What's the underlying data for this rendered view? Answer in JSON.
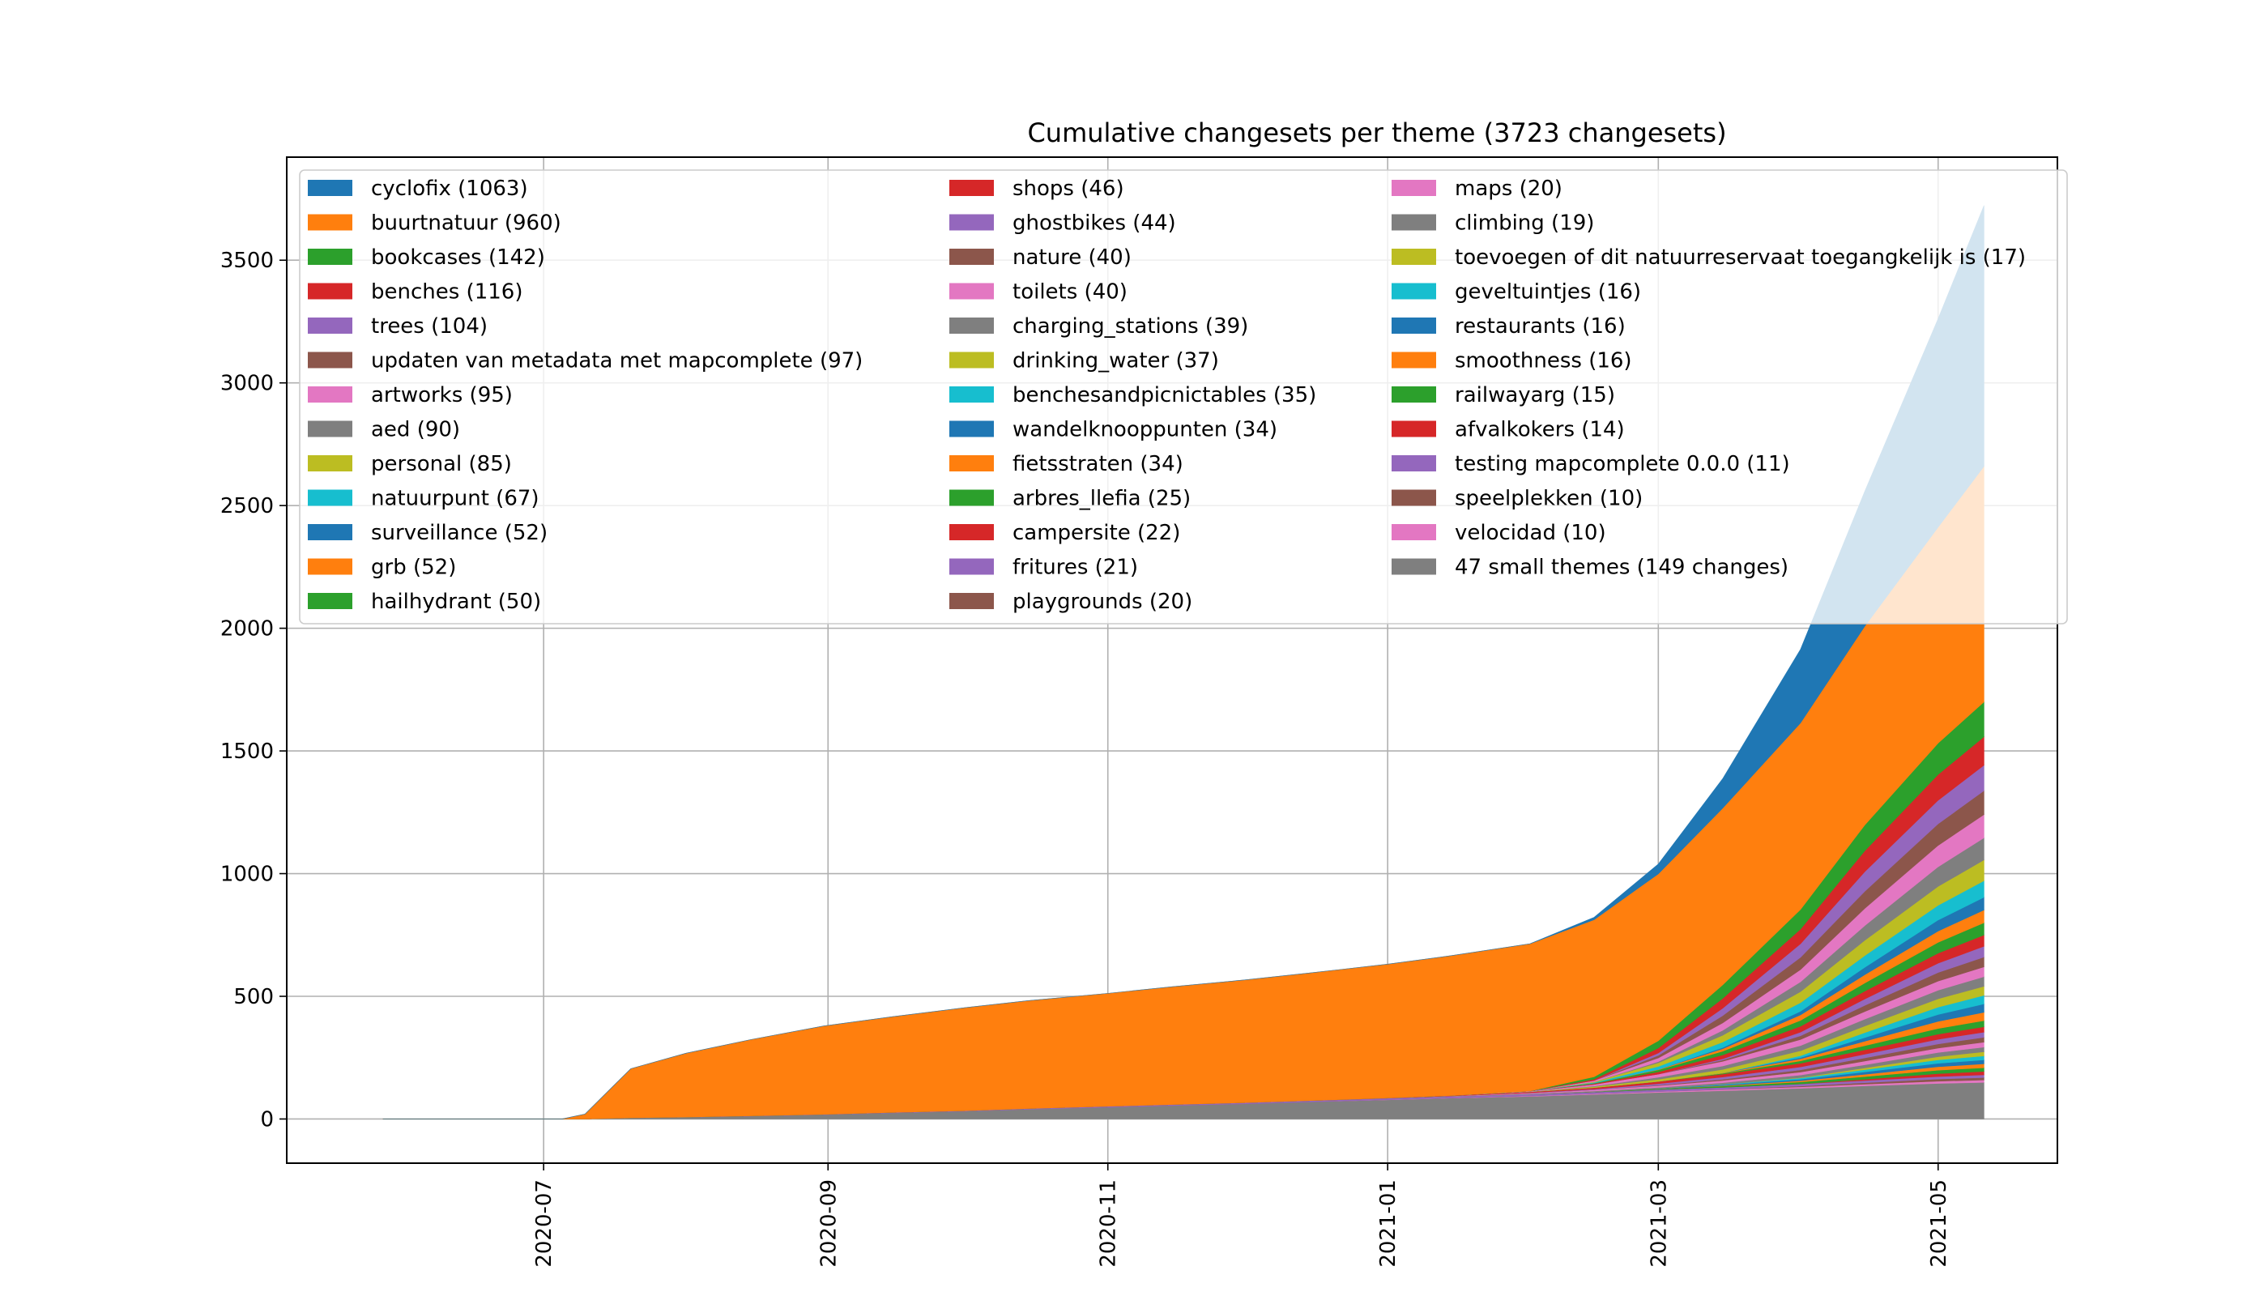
{
  "chart_data": {
    "type": "area",
    "stacked": true,
    "cumulative": true,
    "title": "Cumulative changesets per theme (3723 changesets)",
    "xlabel": "",
    "ylabel": "",
    "xlim": [
      "2020-05-06",
      "2021-05-27"
    ],
    "ylim": [
      -180,
      3920
    ],
    "grid": true,
    "legend_placement": "top (3 columns)",
    "x_ticks": [
      "2020-07",
      "2020-09",
      "2020-11",
      "2021-01",
      "2021-03",
      "2021-05"
    ],
    "x_tick_dates": [
      "2020-07-01",
      "2020-09-01",
      "2020-11-01",
      "2021-01-01",
      "2021-03-01",
      "2021-05-01"
    ],
    "y_ticks": [
      0,
      500,
      1000,
      1500,
      2000,
      2500,
      3000,
      3500
    ],
    "x": [
      "2020-05-27",
      "2020-06-10",
      "2020-06-25",
      "2020-07-05",
      "2020-07-10",
      "2020-07-20",
      "2020-08-01",
      "2020-08-15",
      "2020-08-31",
      "2020-09-15",
      "2020-10-01",
      "2020-10-15",
      "2020-11-01",
      "2020-11-15",
      "2020-12-01",
      "2020-12-15",
      "2021-01-01",
      "2021-01-15",
      "2021-02-01",
      "2021-02-15",
      "2021-03-01",
      "2021-03-15",
      "2021-04-01",
      "2021-04-15",
      "2021-05-01",
      "2021-05-11"
    ],
    "series": [
      {
        "name": "47 small themes (149 changes)",
        "color": "#7f7f7f",
        "values": [
          0,
          0,
          0,
          0,
          0,
          5,
          8,
          12,
          18,
          25,
          32,
          40,
          48,
          55,
          62,
          70,
          78,
          85,
          92,
          100,
          108,
          115,
          125,
          135,
          145,
          149
        ]
      },
      {
        "name": "velocidad (10)",
        "color": "#e377c2",
        "values": [
          0,
          0,
          0,
          0,
          0,
          0,
          0,
          0,
          0,
          0,
          0,
          0,
          0,
          0,
          0,
          0,
          1,
          1,
          2,
          3,
          4,
          5,
          6,
          7,
          9,
          10
        ]
      },
      {
        "name": "speelplekken (10)",
        "color": "#8c564b",
        "values": [
          0,
          0,
          0,
          0,
          0,
          0,
          0,
          0,
          0,
          0,
          0,
          0,
          0,
          0,
          0,
          0,
          0,
          0,
          0,
          0,
          0,
          1,
          3,
          6,
          9,
          10
        ]
      },
      {
        "name": "testing mapcomplete 0.0.0 (11)",
        "color": "#9467bd",
        "values": [
          0,
          0,
          0,
          0,
          0,
          0,
          0,
          1,
          1,
          2,
          2,
          3,
          4,
          4,
          5,
          5,
          6,
          6,
          7,
          7,
          8,
          8,
          9,
          9,
          10,
          11
        ]
      },
      {
        "name": "afvalkokers (14)",
        "color": "#d62728",
        "values": [
          0,
          0,
          0,
          0,
          0,
          0,
          0,
          0,
          0,
          0,
          0,
          0,
          0,
          0,
          0,
          0,
          0,
          0,
          0,
          0,
          0,
          0,
          0,
          5,
          12,
          14
        ]
      },
      {
        "name": "railwayarg (15)",
        "color": "#2ca02c",
        "values": [
          0,
          0,
          0,
          0,
          0,
          0,
          0,
          0,
          0,
          0,
          0,
          0,
          0,
          0,
          0,
          0,
          0,
          0,
          0,
          1,
          3,
          5,
          8,
          11,
          14,
          15
        ]
      },
      {
        "name": "smoothness (16)",
        "color": "#ff7f0e",
        "values": [
          0,
          0,
          0,
          0,
          0,
          0,
          0,
          0,
          0,
          0,
          0,
          0,
          0,
          0,
          0,
          0,
          0,
          0,
          0,
          0,
          0,
          2,
          5,
          9,
          14,
          16
        ]
      },
      {
        "name": "restaurants (16)",
        "color": "#1f77b4",
        "values": [
          0,
          0,
          0,
          0,
          0,
          0,
          0,
          0,
          0,
          0,
          0,
          0,
          0,
          0,
          0,
          0,
          0,
          0,
          0,
          0,
          1,
          3,
          6,
          10,
          14,
          16
        ]
      },
      {
        "name": "geveltuintjes (16)",
        "color": "#17becf",
        "values": [
          0,
          0,
          0,
          0,
          0,
          0,
          0,
          0,
          0,
          0,
          0,
          0,
          0,
          0,
          0,
          0,
          0,
          0,
          0,
          0,
          0,
          2,
          5,
          9,
          14,
          16
        ]
      },
      {
        "name": "toevoegen of dit natuurreservaat toegangkelijk is (17)",
        "color": "#bcbd22",
        "values": [
          0,
          0,
          0,
          0,
          0,
          0,
          0,
          0,
          0,
          0,
          0,
          0,
          0,
          0,
          0,
          0,
          0,
          0,
          0,
          0,
          0,
          0,
          2,
          7,
          13,
          17
        ]
      },
      {
        "name": "climbing (19)",
        "color": "#7f7f7f",
        "values": [
          0,
          0,
          0,
          0,
          0,
          0,
          0,
          0,
          0,
          0,
          0,
          0,
          0,
          0,
          0,
          0,
          0,
          1,
          2,
          3,
          5,
          7,
          10,
          13,
          17,
          19
        ]
      },
      {
        "name": "maps (20)",
        "color": "#e377c2",
        "values": [
          0,
          0,
          0,
          0,
          0,
          0,
          0,
          0,
          0,
          0,
          0,
          0,
          0,
          0,
          0,
          0,
          0,
          1,
          3,
          5,
          7,
          9,
          12,
          15,
          18,
          20
        ]
      },
      {
        "name": "playgrounds (20)",
        "color": "#8c564b",
        "values": [
          0,
          0,
          0,
          0,
          0,
          0,
          0,
          0,
          0,
          0,
          0,
          0,
          0,
          0,
          0,
          0,
          0,
          0,
          0,
          0,
          2,
          5,
          9,
          13,
          17,
          20
        ]
      },
      {
        "name": "fritures (21)",
        "color": "#9467bd",
        "values": [
          0,
          0,
          0,
          0,
          0,
          0,
          0,
          0,
          0,
          0,
          0,
          0,
          0,
          0,
          0,
          0,
          0,
          0,
          1,
          3,
          6,
          9,
          12,
          15,
          19,
          21
        ]
      },
      {
        "name": "campersite (22)",
        "color": "#d62728",
        "values": [
          0,
          0,
          0,
          0,
          0,
          0,
          0,
          0,
          0,
          0,
          0,
          0,
          0,
          0,
          0,
          0,
          1,
          2,
          4,
          6,
          9,
          12,
          15,
          18,
          21,
          22
        ]
      },
      {
        "name": "arbres_llefia (25)",
        "color": "#2ca02c",
        "values": [
          0,
          0,
          0,
          0,
          0,
          0,
          0,
          0,
          0,
          0,
          0,
          0,
          0,
          0,
          0,
          0,
          0,
          0,
          0,
          0,
          0,
          3,
          10,
          17,
          23,
          25
        ]
      },
      {
        "name": "fietsstraten (34)",
        "color": "#ff7f0e",
        "values": [
          0,
          0,
          0,
          0,
          0,
          0,
          0,
          0,
          0,
          0,
          0,
          0,
          0,
          0,
          0,
          0,
          0,
          0,
          0,
          0,
          0,
          2,
          8,
          18,
          29,
          34
        ]
      },
      {
        "name": "wandelknooppunten (34)",
        "color": "#1f77b4",
        "values": [
          0,
          0,
          0,
          0,
          0,
          0,
          0,
          0,
          0,
          0,
          0,
          0,
          0,
          0,
          0,
          0,
          0,
          0,
          0,
          0,
          0,
          0,
          5,
          15,
          28,
          34
        ]
      },
      {
        "name": "benchesandpicnictables (35)",
        "color": "#17becf",
        "values": [
          0,
          0,
          0,
          0,
          0,
          0,
          0,
          0,
          0,
          0,
          0,
          0,
          0,
          0,
          0,
          0,
          0,
          0,
          0,
          0,
          0,
          0,
          8,
          20,
          30,
          35
        ]
      },
      {
        "name": "drinking_water (37)",
        "color": "#bcbd22",
        "values": [
          0,
          0,
          0,
          0,
          0,
          0,
          0,
          0,
          0,
          0,
          0,
          0,
          0,
          0,
          0,
          0,
          0,
          0,
          1,
          4,
          9,
          14,
          20,
          27,
          34,
          37
        ]
      },
      {
        "name": "charging_stations (39)",
        "color": "#7f7f7f",
        "values": [
          0,
          0,
          0,
          0,
          0,
          0,
          0,
          0,
          0,
          0,
          0,
          0,
          0,
          0,
          0,
          0,
          0,
          0,
          0,
          2,
          8,
          14,
          21,
          28,
          35,
          39
        ]
      },
      {
        "name": "toilets (40)",
        "color": "#e377c2",
        "values": [
          0,
          0,
          0,
          0,
          0,
          0,
          0,
          0,
          0,
          0,
          0,
          0,
          0,
          0,
          0,
          0,
          0,
          0,
          2,
          7,
          13,
          19,
          25,
          31,
          37,
          40
        ]
      },
      {
        "name": "nature (40)",
        "color": "#8c564b",
        "values": [
          0,
          0,
          0,
          0,
          0,
          0,
          0,
          0,
          0,
          0,
          0,
          0,
          0,
          0,
          0,
          0,
          0,
          0,
          0,
          0,
          0,
          5,
          15,
          25,
          35,
          40
        ]
      },
      {
        "name": "ghostbikes (44)",
        "color": "#9467bd",
        "values": [
          0,
          0,
          0,
          0,
          0,
          0,
          0,
          0,
          0,
          0,
          0,
          0,
          0,
          0,
          0,
          0,
          0,
          0,
          0,
          0,
          0,
          5,
          15,
          26,
          38,
          44
        ]
      },
      {
        "name": "shops (46)",
        "color": "#d62728",
        "values": [
          0,
          0,
          0,
          0,
          0,
          0,
          0,
          0,
          0,
          0,
          0,
          0,
          0,
          0,
          0,
          0,
          0,
          0,
          0,
          3,
          9,
          16,
          24,
          32,
          41,
          46
        ]
      },
      {
        "name": "hailhydrant (50)",
        "color": "#2ca02c",
        "values": [
          0,
          0,
          0,
          0,
          0,
          0,
          0,
          0,
          0,
          0,
          0,
          0,
          0,
          0,
          0,
          0,
          0,
          0,
          0,
          2,
          8,
          15,
          24,
          33,
          44,
          50
        ]
      },
      {
        "name": "grb (52)",
        "color": "#ff7f0e",
        "values": [
          0,
          0,
          0,
          0,
          0,
          0,
          0,
          0,
          0,
          0,
          0,
          0,
          0,
          0,
          0,
          0,
          0,
          0,
          0,
          0,
          2,
          10,
          22,
          34,
          46,
          52
        ]
      },
      {
        "name": "surveillance (52)",
        "color": "#1f77b4",
        "values": [
          0,
          0,
          0,
          0,
          0,
          0,
          0,
          0,
          0,
          0,
          0,
          0,
          0,
          0,
          0,
          0,
          0,
          0,
          0,
          0,
          0,
          5,
          15,
          30,
          45,
          52
        ]
      },
      {
        "name": "natuurpunt (67)",
        "color": "#17becf",
        "values": [
          0,
          0,
          0,
          0,
          0,
          0,
          0,
          0,
          0,
          0,
          0,
          0,
          0,
          0,
          0,
          0,
          0,
          0,
          0,
          3,
          12,
          22,
          35,
          48,
          60,
          67
        ]
      },
      {
        "name": "personal (85)",
        "color": "#bcbd22",
        "values": [
          0,
          0,
          0,
          0,
          0,
          0,
          0,
          0,
          0,
          0,
          0,
          0,
          0,
          0,
          0,
          0,
          0,
          0,
          0,
          3,
          15,
          28,
          45,
          62,
          77,
          85
        ]
      },
      {
        "name": "aed (90)",
        "color": "#7f7f7f",
        "values": [
          0,
          0,
          0,
          0,
          0,
          0,
          0,
          0,
          0,
          0,
          0,
          0,
          0,
          0,
          0,
          0,
          0,
          0,
          0,
          0,
          5,
          20,
          40,
          60,
          80,
          90
        ]
      },
      {
        "name": "artworks (95)",
        "color": "#e377c2",
        "values": [
          0,
          0,
          0,
          0,
          0,
          0,
          0,
          0,
          0,
          0,
          0,
          0,
          0,
          0,
          0,
          0,
          0,
          0,
          0,
          5,
          15,
          30,
          50,
          70,
          87,
          95
        ]
      },
      {
        "name": "updaten van metadata met mapcomplete (97)",
        "color": "#8c564b",
        "values": [
          0,
          0,
          0,
          0,
          0,
          0,
          0,
          0,
          0,
          0,
          0,
          0,
          0,
          0,
          0,
          0,
          0,
          0,
          0,
          0,
          10,
          30,
          50,
          70,
          88,
          97
        ]
      },
      {
        "name": "trees (104)",
        "color": "#9467bd",
        "values": [
          0,
          0,
          0,
          0,
          0,
          0,
          0,
          0,
          0,
          0,
          0,
          0,
          0,
          0,
          0,
          0,
          0,
          0,
          0,
          0,
          10,
          30,
          55,
          80,
          96,
          104
        ]
      },
      {
        "name": "benches (116)",
        "color": "#d62728",
        "values": [
          0,
          0,
          0,
          0,
          0,
          0,
          0,
          0,
          0,
          0,
          0,
          0,
          0,
          0,
          0,
          0,
          0,
          0,
          0,
          5,
          20,
          40,
          60,
          85,
          105,
          116
        ]
      },
      {
        "name": "bookcases (142)",
        "color": "#2ca02c",
        "values": [
          0,
          0,
          0,
          0,
          0,
          0,
          0,
          0,
          0,
          0,
          0,
          0,
          0,
          0,
          0,
          0,
          0,
          0,
          0,
          10,
          30,
          55,
          80,
          105,
          128,
          142
        ]
      },
      {
        "name": "buurtnatuur (960)",
        "color": "#ff7f0e",
        "values": [
          0,
          0,
          0,
          0,
          20,
          200,
          260,
          310,
          360,
          390,
          420,
          440,
          460,
          480,
          500,
          520,
          545,
          570,
          600,
          640,
          680,
          720,
          760,
          810,
          880,
          960
        ]
      },
      {
        "name": "cyclofix (1063)",
        "color": "#1f77b4",
        "values": [
          0,
          0,
          0,
          0,
          0,
          0,
          0,
          0,
          0,
          0,
          0,
          0,
          0,
          0,
          0,
          0,
          0,
          0,
          0,
          10,
          40,
          120,
          300,
          550,
          850,
          1063
        ]
      }
    ]
  }
}
